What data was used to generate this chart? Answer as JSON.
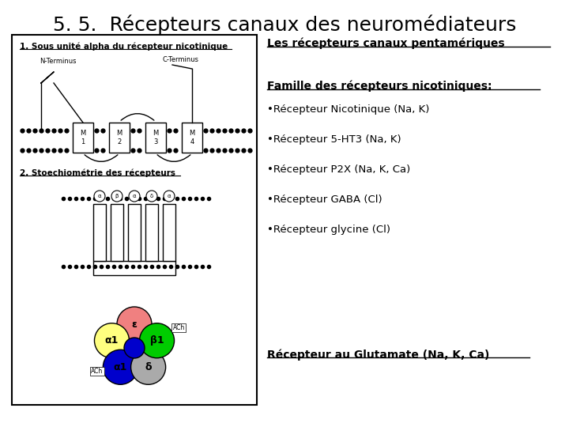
{
  "title": "5. 5.  Récepteurs canaux des neuromédiateurs",
  "title_fontsize": 18,
  "bg_color": "#ffffff",
  "left_panel_label1": "1. Sous unité alpha du récepteur nicotinique",
  "left_panel_label2": "2. Stoechiométrie des récepteurs",
  "right_title": "Les récepteurs canaux pentamériques",
  "right_family": "Famille des récepteurs nicotiniques:",
  "right_items": [
    "•Récepteur Nicotinique (Na, K)",
    "•Récepteur 5-HT3 (Na, K)",
    "•Récepteur P2X (Na, K, Ca)",
    "•Récepteur GABA (Cl)",
    "•Récepteur glycine (Cl)"
  ],
  "right_glutamate": "Récepteur au Glutamate (Na, K, Ca)",
  "subunit_labels": [
    "M\n1",
    "M\n2",
    "M\n3",
    "M\n4"
  ],
  "pie_colors": [
    "#f08080",
    "#ffff80",
    "#0000cc",
    "#aaaaaa",
    "#00cc00"
  ],
  "pie_labels": [
    "ε",
    "α1",
    "α1",
    "δ",
    "β1"
  ],
  "n_terminus": "N-Terminus",
  "c_terminus": "C-Terminus",
  "ach_label": "ACh"
}
